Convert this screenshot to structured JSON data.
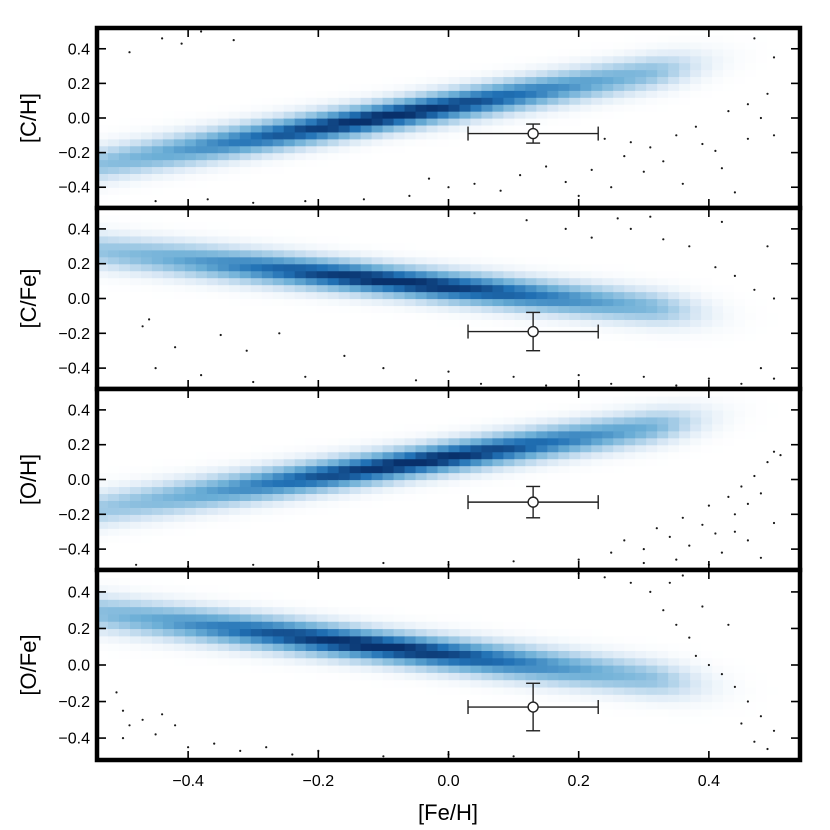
{
  "chart_data": {
    "type": "heatmap",
    "description_panels": "four stacked density panels sharing the x axis",
    "xlabel": "[Fe/H]",
    "xlim": [
      -0.54,
      0.54
    ],
    "x_ticks": [
      -0.4,
      -0.2,
      0.0,
      0.2,
      0.4
    ],
    "x_tick_labels": [
      "−0.4",
      "−0.2",
      "0.0",
      "0.2",
      "0.4"
    ],
    "y_ticks": [
      -0.4,
      -0.2,
      0.0,
      0.2,
      0.4
    ],
    "y_tick_labels": [
      "−0.4",
      "−0.2",
      "0.0",
      "0.2",
      "0.4"
    ],
    "colormap": [
      "#ffffff",
      "#d6e6f4",
      "#6baed6",
      "#2171b5",
      "#08306b"
    ],
    "panels": [
      {
        "ylabel": "[C/H]",
        "ylim": [
          -0.52,
          0.52
        ],
        "ridge": {
          "slope": 0.62,
          "intercept": 0.07
        },
        "density_peak_x": -0.1,
        "point": {
          "x": 0.13,
          "y": -0.09,
          "xerr": 0.1,
          "yerr": 0.055
        },
        "scatter_points": [
          [
            -0.49,
            0.38
          ],
          [
            -0.44,
            0.46
          ],
          [
            -0.41,
            0.43
          ],
          [
            -0.38,
            0.5
          ],
          [
            -0.33,
            0.45
          ],
          [
            -0.45,
            -0.48
          ],
          [
            -0.37,
            -0.47
          ],
          [
            -0.3,
            -0.49
          ],
          [
            -0.22,
            -0.48
          ],
          [
            -0.13,
            -0.47
          ],
          [
            -0.06,
            -0.45
          ],
          [
            -0.03,
            -0.35
          ],
          [
            0.0,
            -0.4
          ],
          [
            0.04,
            -0.38
          ],
          [
            0.08,
            -0.42
          ],
          [
            0.11,
            -0.33
          ],
          [
            0.15,
            -0.28
          ],
          [
            0.18,
            -0.37
          ],
          [
            0.2,
            -0.45
          ],
          [
            0.22,
            -0.3
          ],
          [
            0.25,
            -0.4
          ],
          [
            0.27,
            -0.22
          ],
          [
            0.3,
            -0.31
          ],
          [
            0.33,
            -0.25
          ],
          [
            0.36,
            -0.38
          ],
          [
            0.39,
            -0.15
          ],
          [
            0.42,
            -0.29
          ],
          [
            0.44,
            -0.43
          ],
          [
            0.46,
            -0.12
          ],
          [
            0.48,
            0.0
          ],
          [
            0.5,
            -0.1
          ],
          [
            0.43,
            0.04
          ],
          [
            0.46,
            0.08
          ],
          [
            0.49,
            0.14
          ],
          [
            0.35,
            -0.1
          ],
          [
            0.38,
            -0.05
          ],
          [
            0.41,
            -0.19
          ],
          [
            0.24,
            -0.12
          ],
          [
            0.28,
            -0.14
          ],
          [
            0.31,
            -0.17
          ],
          [
            0.47,
            0.46
          ],
          [
            0.5,
            0.35
          ]
        ]
      },
      {
        "ylabel": "[C/Fe]",
        "ylim": [
          -0.52,
          0.52
        ],
        "ridge": {
          "slope": -0.38,
          "intercept": 0.07
        },
        "density_peak_x": -0.08,
        "point": {
          "x": 0.13,
          "y": -0.19,
          "xerr": 0.1,
          "yerr": 0.11
        },
        "scatter_points": [
          [
            -0.46,
            -0.12
          ],
          [
            -0.47,
            -0.16
          ],
          [
            -0.42,
            -0.28
          ],
          [
            -0.35,
            -0.21
          ],
          [
            -0.31,
            -0.3
          ],
          [
            -0.26,
            -0.2
          ],
          [
            -0.45,
            -0.4
          ],
          [
            -0.38,
            -0.44
          ],
          [
            -0.3,
            -0.48
          ],
          [
            -0.22,
            -0.45
          ],
          [
            -0.16,
            -0.33
          ],
          [
            -0.1,
            -0.4
          ],
          [
            -0.05,
            -0.47
          ],
          [
            0.0,
            -0.42
          ],
          [
            0.05,
            -0.49
          ],
          [
            0.1,
            -0.45
          ],
          [
            0.15,
            -0.5
          ],
          [
            0.2,
            -0.44
          ],
          [
            0.25,
            -0.49
          ],
          [
            0.3,
            -0.45
          ],
          [
            0.35,
            -0.5
          ],
          [
            0.4,
            -0.46
          ],
          [
            0.45,
            -0.49
          ],
          [
            0.48,
            -0.4
          ],
          [
            0.5,
            -0.46
          ],
          [
            0.04,
            0.49
          ],
          [
            0.12,
            0.45
          ],
          [
            0.18,
            0.4
          ],
          [
            0.22,
            0.35
          ],
          [
            0.28,
            0.4
          ],
          [
            0.33,
            0.34
          ],
          [
            0.37,
            0.3
          ],
          [
            0.41,
            0.18
          ],
          [
            0.44,
            0.13
          ],
          [
            0.49,
            0.3
          ],
          [
            0.5,
            0.0
          ],
          [
            0.47,
            0.05
          ],
          [
            0.26,
            0.46
          ],
          [
            0.31,
            0.47
          ],
          [
            0.42,
            0.44
          ]
        ]
      },
      {
        "ylabel": "[O/H]",
        "ylim": [
          -0.52,
          0.52
        ],
        "ridge": {
          "slope": 0.55,
          "intercept": 0.13
        },
        "density_peak_x": -0.05,
        "point": {
          "x": 0.13,
          "y": -0.13,
          "xerr": 0.1,
          "yerr": 0.09
        },
        "scatter_points": [
          [
            -0.48,
            -0.49
          ],
          [
            -0.4,
            -0.5
          ],
          [
            -0.3,
            -0.49
          ],
          [
            -0.2,
            -0.5
          ],
          [
            -0.1,
            -0.48
          ],
          [
            0.0,
            -0.49
          ],
          [
            0.1,
            -0.47
          ],
          [
            0.2,
            -0.46
          ],
          [
            0.25,
            -0.42
          ],
          [
            0.27,
            -0.35
          ],
          [
            0.3,
            -0.4
          ],
          [
            0.32,
            -0.28
          ],
          [
            0.34,
            -0.33
          ],
          [
            0.36,
            -0.22
          ],
          [
            0.37,
            -0.38
          ],
          [
            0.39,
            -0.26
          ],
          [
            0.4,
            -0.15
          ],
          [
            0.41,
            -0.31
          ],
          [
            0.43,
            -0.1
          ],
          [
            0.44,
            -0.2
          ],
          [
            0.45,
            -0.04
          ],
          [
            0.46,
            -0.14
          ],
          [
            0.47,
            0.02
          ],
          [
            0.48,
            -0.08
          ],
          [
            0.49,
            0.1
          ],
          [
            0.5,
            0.16
          ],
          [
            0.51,
            0.14
          ],
          [
            0.42,
            -0.42
          ],
          [
            0.46,
            -0.35
          ],
          [
            0.5,
            -0.25
          ],
          [
            0.48,
            -0.45
          ],
          [
            0.3,
            -0.48
          ],
          [
            0.35,
            -0.46
          ],
          [
            0.4,
            -0.49
          ],
          [
            0.44,
            -0.3
          ]
        ]
      },
      {
        "ylabel": "[O/Fe]",
        "ylim": [
          -0.52,
          0.52
        ],
        "ridge": {
          "slope": -0.42,
          "intercept": 0.06
        },
        "density_peak_x": -0.12,
        "point": {
          "x": 0.13,
          "y": -0.23,
          "xerr": 0.1,
          "yerr": 0.13
        },
        "scatter_points": [
          [
            -0.51,
            -0.15
          ],
          [
            -0.5,
            -0.25
          ],
          [
            -0.49,
            -0.33
          ],
          [
            -0.5,
            -0.4
          ],
          [
            -0.47,
            -0.3
          ],
          [
            -0.45,
            -0.38
          ],
          [
            -0.44,
            -0.27
          ],
          [
            -0.42,
            -0.33
          ],
          [
            -0.4,
            -0.45
          ],
          [
            -0.36,
            -0.43
          ],
          [
            -0.32,
            -0.47
          ],
          [
            -0.28,
            -0.45
          ],
          [
            -0.24,
            -0.49
          ],
          [
            -0.2,
            -0.47
          ],
          [
            -0.1,
            -0.5
          ],
          [
            0.0,
            -0.49
          ],
          [
            0.1,
            -0.5
          ],
          [
            0.2,
            0.5
          ],
          [
            0.24,
            0.48
          ],
          [
            0.28,
            0.45
          ],
          [
            0.31,
            0.4
          ],
          [
            0.33,
            0.3
          ],
          [
            0.35,
            0.22
          ],
          [
            0.37,
            0.15
          ],
          [
            0.38,
            0.05
          ],
          [
            0.4,
            0.0
          ],
          [
            0.42,
            -0.05
          ],
          [
            0.44,
            -0.12
          ],
          [
            0.46,
            -0.2
          ],
          [
            0.48,
            -0.28
          ],
          [
            0.5,
            -0.36
          ],
          [
            0.45,
            -0.32
          ],
          [
            0.47,
            -0.42
          ],
          [
            0.49,
            -0.46
          ],
          [
            0.34,
            0.45
          ],
          [
            0.39,
            0.32
          ],
          [
            0.43,
            0.22
          ],
          [
            0.36,
            0.49
          ]
        ]
      }
    ]
  }
}
